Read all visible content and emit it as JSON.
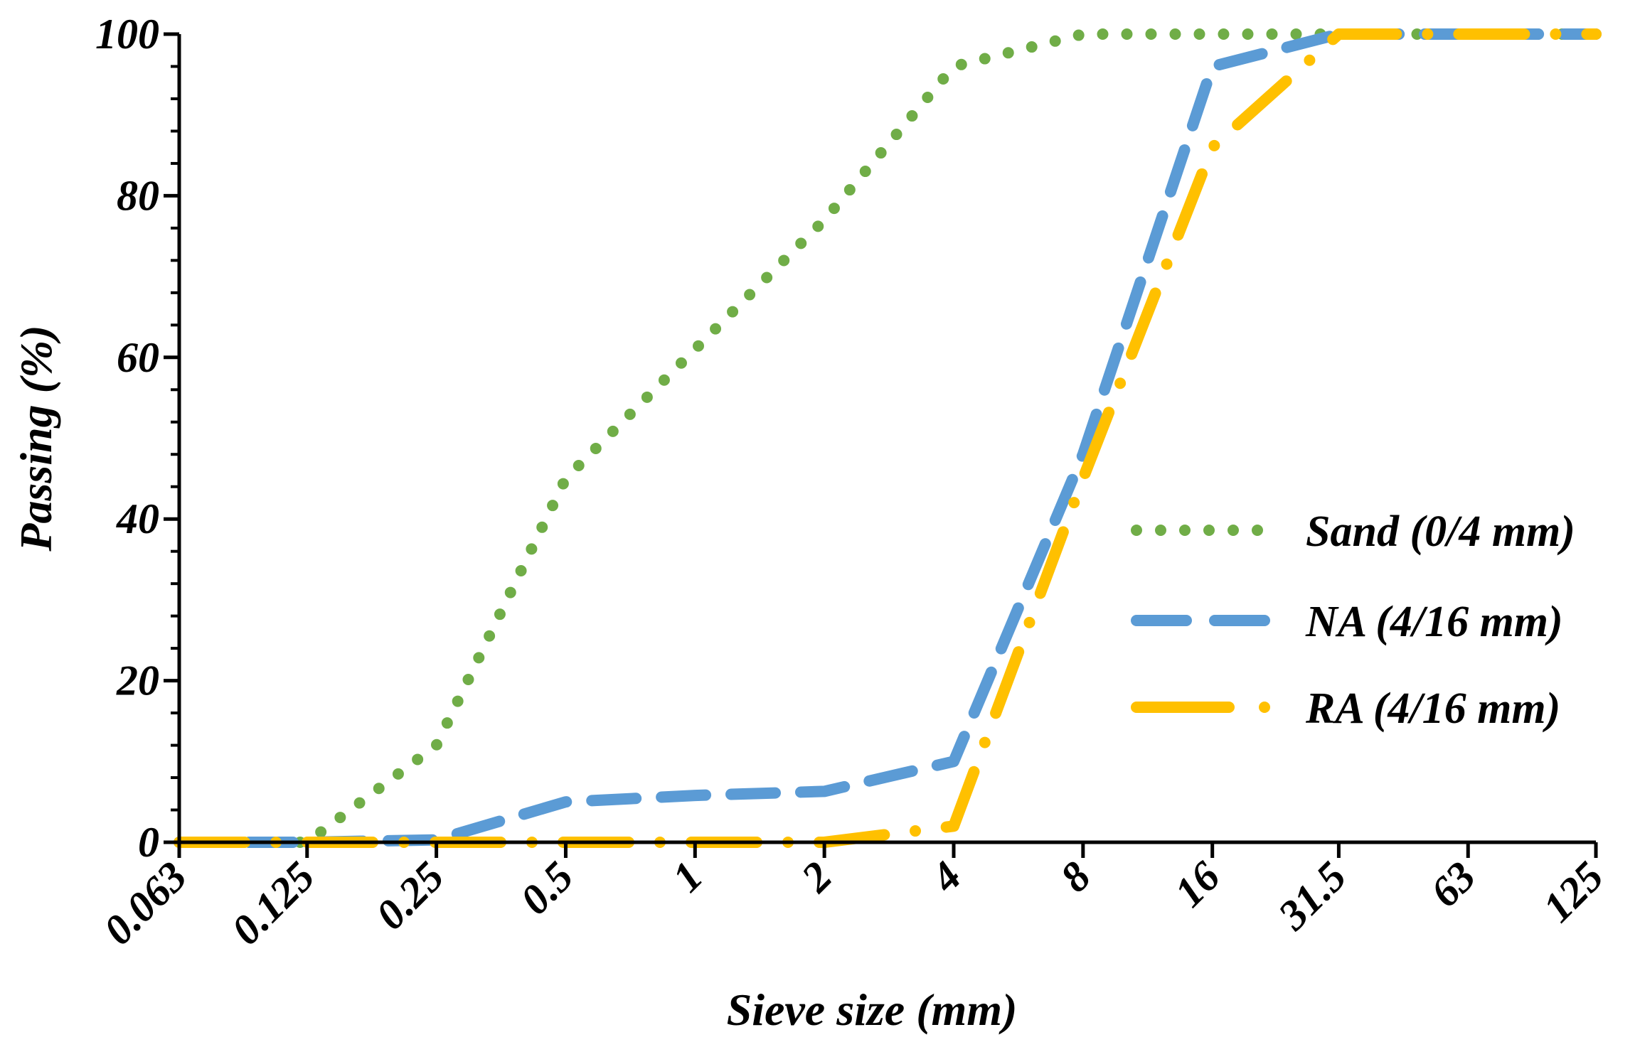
{
  "chart_data": {
    "type": "line",
    "title": "",
    "xlabel": "Sieve size (mm)",
    "ylabel": "Passing (%)",
    "x_scale": "log2",
    "categories": [
      "0.063",
      "0.125",
      "0.25",
      "0.5",
      "1",
      "2",
      "4",
      "8",
      "16",
      "31.5",
      "63",
      "125"
    ],
    "ylim": [
      0,
      100
    ],
    "y_ticks": [
      "0",
      "20",
      "40",
      "60",
      "80",
      "100"
    ],
    "y_minor_step": 4,
    "grid": false,
    "legend_position": "right-middle",
    "series": [
      {
        "name": "Sand (0/4 mm)",
        "style": "dotted",
        "color": "#70ad47",
        "points": [
          [
            0.063,
            0
          ],
          [
            0.125,
            0
          ],
          [
            0.25,
            12
          ],
          [
            0.5,
            45
          ],
          [
            1,
            61
          ],
          [
            2,
            77
          ],
          [
            4,
            96
          ],
          [
            8,
            100
          ],
          [
            16,
            100
          ],
          [
            31.5,
            100
          ],
          [
            63,
            100
          ],
          [
            125,
            100
          ]
        ]
      },
      {
        "name": "NA (4/16 mm)",
        "style": "dashed",
        "color": "#5b9bd5",
        "points": [
          [
            0.063,
            0
          ],
          [
            0.125,
            0
          ],
          [
            0.25,
            0.3
          ],
          [
            0.5,
            5
          ],
          [
            1,
            5.8
          ],
          [
            2,
            6.3
          ],
          [
            4,
            10
          ],
          [
            8,
            48
          ],
          [
            16,
            96
          ],
          [
            31.5,
            100
          ],
          [
            63,
            100
          ],
          [
            125,
            100
          ]
        ]
      },
      {
        "name": "RA (4/16 mm)",
        "style": "long-dash-dot",
        "color": "#ffc000",
        "points": [
          [
            0.063,
            0
          ],
          [
            0.125,
            0
          ],
          [
            0.25,
            0
          ],
          [
            0.5,
            0
          ],
          [
            1,
            0
          ],
          [
            2,
            0
          ],
          [
            4,
            2
          ],
          [
            8,
            45
          ],
          [
            16,
            86
          ],
          [
            31.5,
            100
          ],
          [
            63,
            100
          ],
          [
            125,
            100
          ]
        ]
      }
    ]
  }
}
